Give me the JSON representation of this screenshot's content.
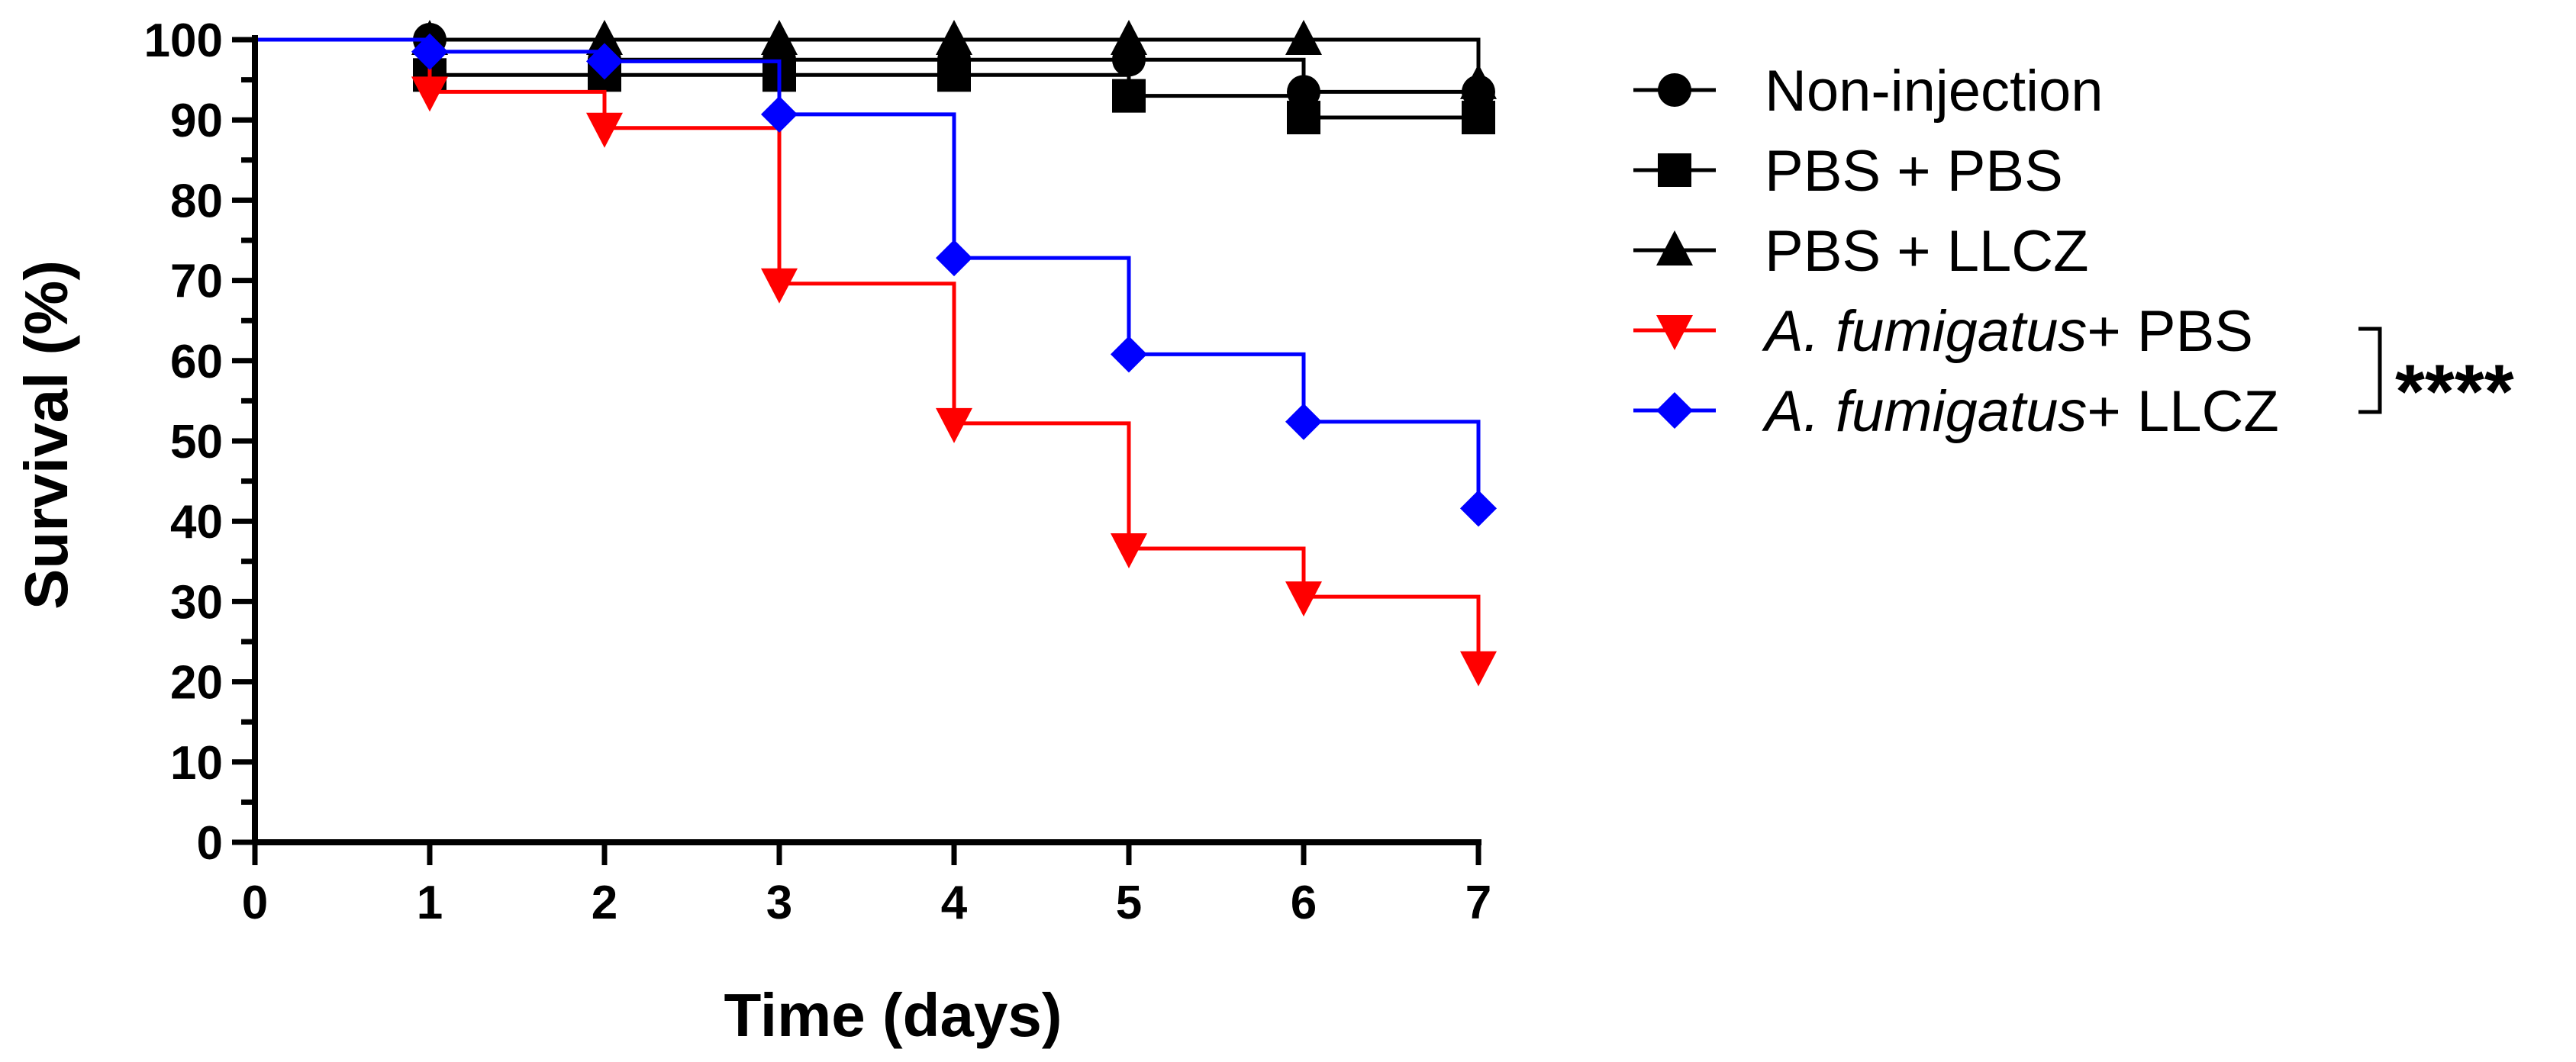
{
  "chart_data": {
    "type": "line",
    "subtype": "kaplan-meier-step",
    "xlabel": "Time (days)",
    "ylabel": "Survival  (%)",
    "xlim": [
      0,
      7
    ],
    "ylim": [
      0,
      100
    ],
    "xticks": [
      "0",
      "1",
      "2",
      "3",
      "4",
      "5",
      "6",
      "7"
    ],
    "yticks": [
      "0",
      "10",
      "20",
      "30",
      "40",
      "50",
      "60",
      "70",
      "80",
      "90",
      "100"
    ],
    "legend_position": "right",
    "series": [
      {
        "name": "Non-injection",
        "label_parts": [
          {
            "text": "Non-injection",
            "italic": false
          }
        ],
        "color": "#000000",
        "marker": "circle",
        "x": [
          0,
          1,
          2,
          3,
          4,
          5,
          6,
          7
        ],
        "y": [
          100,
          100,
          97.5,
          97.5,
          97.5,
          97.5,
          93.5,
          93.5
        ]
      },
      {
        "name": "PBS + PBS",
        "label_parts": [
          {
            "text": "PBS + PBS",
            "italic": false
          }
        ],
        "color": "#000000",
        "marker": "square",
        "x": [
          0,
          1,
          2,
          3,
          4,
          5,
          6,
          7
        ],
        "y": [
          100,
          95.6,
          95.6,
          95.6,
          95.6,
          93,
          90.3,
          90.3
        ]
      },
      {
        "name": "PBS + LLCZ",
        "label_parts": [
          {
            "text": "PBS + LLCZ",
            "italic": false
          }
        ],
        "color": "#000000",
        "marker": "triangle-up",
        "x": [
          0,
          1,
          2,
          3,
          4,
          5,
          6,
          7
        ],
        "y": [
          100,
          100,
          100,
          100,
          100,
          100,
          100,
          94.5
        ]
      },
      {
        "name": "A. fumigatus+ PBS",
        "label_parts": [
          {
            "text": "A. fumigatus",
            "italic": true
          },
          {
            "text": "+ PBS",
            "italic": false
          }
        ],
        "color": "#ff0000",
        "marker": "triangle-down",
        "x": [
          0,
          1,
          2,
          3,
          4,
          5,
          6,
          7
        ],
        "y": [
          100,
          93.5,
          89,
          69.6,
          52.2,
          36.6,
          30.6,
          21.9
        ]
      },
      {
        "name": "A. fumigatus+ LLCZ",
        "label_parts": [
          {
            "text": "A. fumigatus",
            "italic": true
          },
          {
            "text": "+ LLCZ",
            "italic": false
          }
        ],
        "color": "#0000ff",
        "marker": "diamond",
        "x": [
          0,
          1,
          2,
          3,
          4,
          5,
          6,
          7
        ],
        "y": [
          100,
          98.5,
          97.3,
          90.7,
          72.8,
          60.8,
          52.4,
          41.6
        ]
      }
    ],
    "annotations": [
      {
        "text": "****",
        "type": "significance-bracket",
        "between": [
          "A. fumigatus+ PBS",
          "A. fumigatus+ LLCZ"
        ]
      }
    ]
  }
}
